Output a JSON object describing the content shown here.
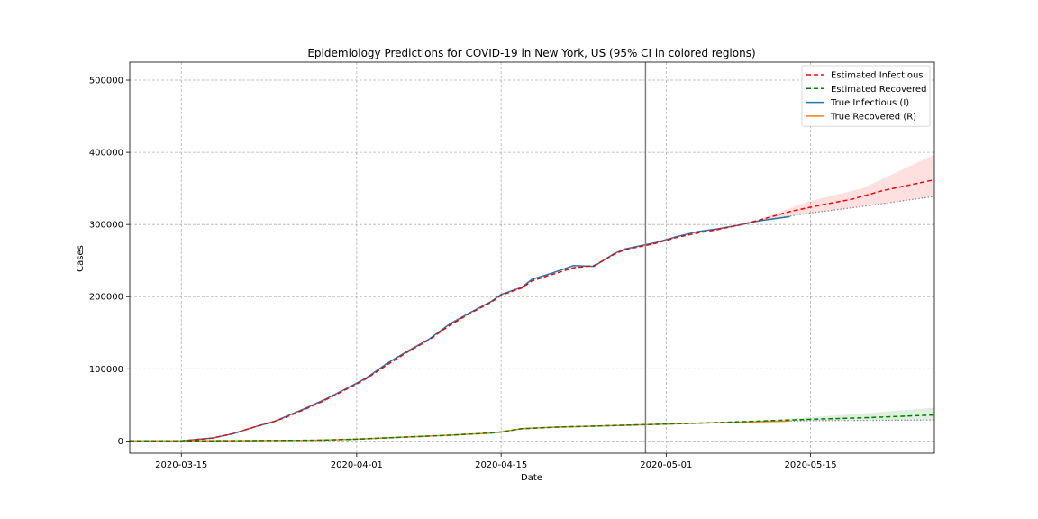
{
  "chart_data": {
    "type": "line",
    "title": "Epidemiology Predictions for COVID-19 in New York, US (95% CI in colored regions)",
    "xlabel": "Date",
    "ylabel": "Cases",
    "xlim": [
      "2020-03-10",
      "2020-05-27"
    ],
    "ylim": [
      -17000,
      525000
    ],
    "x_ticks": [
      "2020-03-15",
      "2020-04-01",
      "2020-04-15",
      "2020-05-01",
      "2020-05-15"
    ],
    "y_ticks": [
      0,
      100000,
      200000,
      300000,
      400000,
      500000
    ],
    "grid": true,
    "legend_position": "top-right",
    "vertical_marker": "2020-04-29",
    "series": [
      {
        "name": "Estimated Infectious",
        "style": "dashed",
        "color": "#ff0000",
        "points": [
          [
            "2020-03-10",
            0
          ],
          [
            "2020-03-15",
            100
          ],
          [
            "2020-03-18",
            4000
          ],
          [
            "2020-03-20",
            10000
          ],
          [
            "2020-03-22",
            19000
          ],
          [
            "2020-03-24",
            27000
          ],
          [
            "2020-03-25",
            32000
          ],
          [
            "2020-03-27",
            44000
          ],
          [
            "2020-03-29",
            57000
          ],
          [
            "2020-04-01",
            79000
          ],
          [
            "2020-04-02",
            87000
          ],
          [
            "2020-04-04",
            106000
          ],
          [
            "2020-04-06",
            124000
          ],
          [
            "2020-04-08",
            140000
          ],
          [
            "2020-04-10",
            160000
          ],
          [
            "2020-04-12",
            177000
          ],
          [
            "2020-04-14",
            192000
          ],
          [
            "2020-04-15",
            202000
          ],
          [
            "2020-04-17",
            212000
          ],
          [
            "2020-04-18",
            222000
          ],
          [
            "2020-04-20",
            231000
          ],
          [
            "2020-04-22",
            240000
          ],
          [
            "2020-04-24",
            243000
          ],
          [
            "2020-04-26",
            259000
          ],
          [
            "2020-04-27",
            265000
          ],
          [
            "2020-04-30",
            274000
          ],
          [
            "2020-05-02",
            282000
          ],
          [
            "2020-05-04",
            288000
          ],
          [
            "2020-05-06",
            293000
          ],
          [
            "2020-05-08",
            299000
          ],
          [
            "2020-05-10",
            306000
          ],
          [
            "2020-05-13",
            318000
          ],
          [
            "2020-05-16",
            327000
          ],
          [
            "2020-05-19",
            335000
          ],
          [
            "2020-05-22",
            347000
          ],
          [
            "2020-05-25",
            356000
          ],
          [
            "2020-05-27",
            362000
          ]
        ]
      },
      {
        "name": "Estimated Recovered",
        "style": "dashed",
        "color": "#008000",
        "points": [
          [
            "2020-03-10",
            0
          ],
          [
            "2020-03-20",
            300
          ],
          [
            "2020-03-28",
            1000
          ],
          [
            "2020-04-01",
            2500
          ],
          [
            "2020-04-05",
            5000
          ],
          [
            "2020-04-10",
            8000
          ],
          [
            "2020-04-14",
            11000
          ],
          [
            "2020-04-15",
            12500
          ],
          [
            "2020-04-17",
            17000
          ],
          [
            "2020-04-20",
            19000
          ],
          [
            "2020-04-25",
            21000
          ],
          [
            "2020-04-30",
            23000
          ],
          [
            "2020-05-05",
            25000
          ],
          [
            "2020-05-10",
            27500
          ],
          [
            "2020-05-15",
            30000
          ],
          [
            "2020-05-20",
            32000
          ],
          [
            "2020-05-27",
            36000
          ]
        ]
      },
      {
        "name": "True Infectious (I)",
        "style": "solid",
        "color": "#1f77b4",
        "points": [
          [
            "2020-03-10",
            0
          ],
          [
            "2020-03-15",
            200
          ],
          [
            "2020-03-18",
            4000
          ],
          [
            "2020-03-20",
            10000
          ],
          [
            "2020-03-22",
            19000
          ],
          [
            "2020-03-24",
            27000
          ],
          [
            "2020-03-25",
            33000
          ],
          [
            "2020-03-27",
            45000
          ],
          [
            "2020-03-29",
            58000
          ],
          [
            "2020-04-01",
            80000
          ],
          [
            "2020-04-02",
            88000
          ],
          [
            "2020-04-04",
            108000
          ],
          [
            "2020-04-06",
            125000
          ],
          [
            "2020-04-08",
            141000
          ],
          [
            "2020-04-10",
            162000
          ],
          [
            "2020-04-12",
            178000
          ],
          [
            "2020-04-14",
            193000
          ],
          [
            "2020-04-15",
            203000
          ],
          [
            "2020-04-17",
            213000
          ],
          [
            "2020-04-18",
            224000
          ],
          [
            "2020-04-20",
            233000
          ],
          [
            "2020-04-22",
            243000
          ],
          [
            "2020-04-24",
            242000
          ],
          [
            "2020-04-26",
            260000
          ],
          [
            "2020-04-27",
            266000
          ],
          [
            "2020-04-30",
            275000
          ],
          [
            "2020-05-02",
            283000
          ],
          [
            "2020-05-04",
            290000
          ],
          [
            "2020-05-06",
            294000
          ],
          [
            "2020-05-08",
            299000
          ],
          [
            "2020-05-10",
            305000
          ],
          [
            "2020-05-13",
            311000
          ]
        ]
      },
      {
        "name": "True Recovered (R)",
        "style": "solid",
        "color": "#ff7f0e",
        "points": [
          [
            "2020-03-10",
            0
          ],
          [
            "2020-03-20",
            300
          ],
          [
            "2020-03-28",
            1000
          ],
          [
            "2020-04-01",
            2500
          ],
          [
            "2020-04-05",
            5000
          ],
          [
            "2020-04-10",
            8000
          ],
          [
            "2020-04-14",
            11000
          ],
          [
            "2020-04-15",
            12500
          ],
          [
            "2020-04-17",
            17000
          ],
          [
            "2020-04-20",
            19000
          ],
          [
            "2020-04-25",
            21000
          ],
          [
            "2020-04-30",
            23000
          ],
          [
            "2020-05-05",
            25000
          ],
          [
            "2020-05-10",
            26500
          ],
          [
            "2020-05-13",
            27500
          ]
        ]
      }
    ],
    "confidence_bands": [
      {
        "color": "#ff0000",
        "lower": [
          [
            "2020-05-10",
            305000
          ],
          [
            "2020-05-15",
            316000
          ],
          [
            "2020-05-20",
            325000
          ],
          [
            "2020-05-27",
            339000
          ]
        ],
        "upper": [
          [
            "2020-05-10",
            307000
          ],
          [
            "2020-05-15",
            333000
          ],
          [
            "2020-05-20",
            350000
          ],
          [
            "2020-05-27",
            397000
          ]
        ]
      },
      {
        "color": "#008000",
        "lower": [
          [
            "2020-05-10",
            27000
          ],
          [
            "2020-05-15",
            28000
          ],
          [
            "2020-05-20",
            28500
          ],
          [
            "2020-05-27",
            29000
          ]
        ],
        "upper": [
          [
            "2020-05-10",
            28000
          ],
          [
            "2020-05-15",
            33000
          ],
          [
            "2020-05-20",
            38000
          ],
          [
            "2020-05-27",
            46000
          ]
        ]
      }
    ]
  }
}
